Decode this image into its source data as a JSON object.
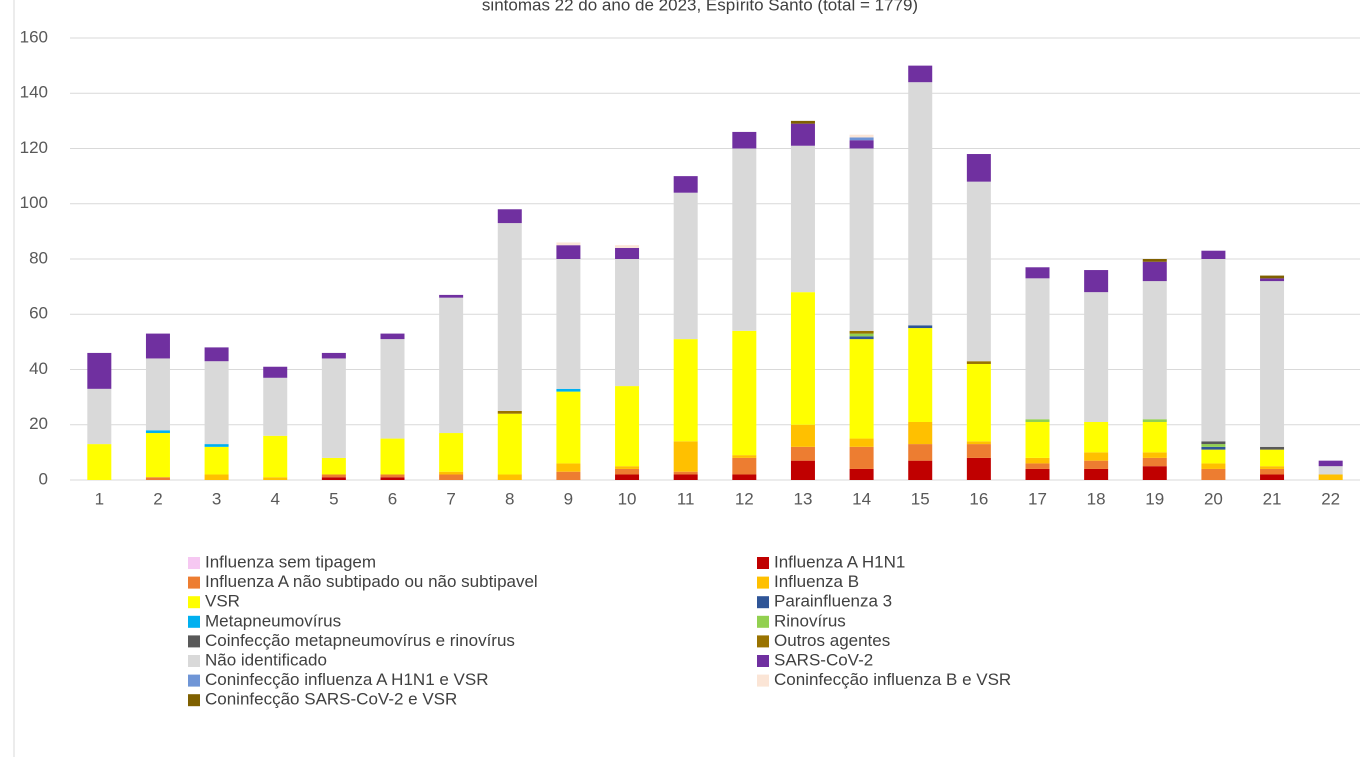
{
  "chart_data": {
    "type": "stacked_bar",
    "title": "sintomas 22 do ano de 2023, Espírito Santo (total = 1779)",
    "categories": [
      "1",
      "2",
      "3",
      "4",
      "5",
      "6",
      "7",
      "8",
      "9",
      "10",
      "11",
      "12",
      "13",
      "14",
      "15",
      "16",
      "17",
      "18",
      "19",
      "20",
      "21",
      "22"
    ],
    "ylim": [
      0,
      160
    ],
    "yticks": [
      0,
      20,
      40,
      60,
      80,
      100,
      120,
      140,
      160
    ],
    "grid": true,
    "series": [
      {
        "name": "Influenza sem tipagem",
        "color": "#f6c8f2",
        "values": [
          0,
          0,
          0,
          0,
          0,
          0,
          0,
          0,
          0,
          0,
          0,
          0,
          0,
          0,
          0,
          0,
          0,
          0,
          0,
          0,
          0,
          0
        ]
      },
      {
        "name": "Influenza A H1N1",
        "color": "#c00000",
        "values": [
          0,
          0,
          0,
          0,
          1,
          1,
          0,
          0,
          0,
          2,
          2,
          2,
          7,
          4,
          7,
          8,
          4,
          4,
          5,
          0,
          2,
          0
        ]
      },
      {
        "name": "Influenza A não subtipado ou não subtipavel",
        "color": "#ed7d31",
        "values": [
          0,
          1,
          0,
          0,
          1,
          1,
          2,
          0,
          3,
          2,
          1,
          6,
          5,
          8,
          6,
          5,
          2,
          3,
          3,
          4,
          2,
          0
        ]
      },
      {
        "name": "Influenza B",
        "color": "#ffc000",
        "values": [
          0,
          0,
          2,
          1,
          0,
          0,
          1,
          2,
          3,
          1,
          11,
          1,
          8,
          3,
          8,
          1,
          2,
          3,
          2,
          2,
          1,
          2
        ]
      },
      {
        "name": "VSR",
        "color": "#ffff00",
        "values": [
          13,
          16,
          10,
          15,
          6,
          13,
          14,
          22,
          26,
          29,
          37,
          45,
          48,
          36,
          34,
          28,
          13,
          11,
          11,
          5,
          6,
          0
        ]
      },
      {
        "name": "Parainfluenza 3",
        "color": "#2f5597",
        "values": [
          0,
          0,
          0,
          0,
          0,
          0,
          0,
          0,
          0,
          0,
          0,
          0,
          0,
          1,
          1,
          0,
          0,
          0,
          0,
          1,
          0,
          0
        ]
      },
      {
        "name": "Metapneumovírus",
        "color": "#00b0f0",
        "values": [
          0,
          1,
          1,
          0,
          0,
          0,
          0,
          0,
          1,
          0,
          0,
          0,
          0,
          0,
          0,
          0,
          0,
          0,
          0,
          0,
          0,
          0
        ]
      },
      {
        "name": "Rinovírus",
        "color": "#92d050",
        "values": [
          0,
          0,
          0,
          0,
          0,
          0,
          0,
          0,
          0,
          0,
          0,
          0,
          0,
          1,
          0,
          0,
          1,
          0,
          1,
          1,
          0,
          0
        ]
      },
      {
        "name": "Coinfecção metapneumovírus e rinovírus",
        "color": "#595959",
        "values": [
          0,
          0,
          0,
          0,
          0,
          0,
          0,
          0,
          0,
          0,
          0,
          0,
          0,
          0,
          0,
          0,
          0,
          0,
          0,
          1,
          1,
          0
        ]
      },
      {
        "name": "Outros agentes",
        "color": "#997300",
        "values": [
          0,
          0,
          0,
          0,
          0,
          0,
          0,
          1,
          0,
          0,
          0,
          0,
          0,
          1,
          0,
          1,
          0,
          0,
          0,
          0,
          0,
          0
        ]
      },
      {
        "name": "Não identificado",
        "color": "#d9d9d9",
        "values": [
          20,
          26,
          30,
          21,
          36,
          36,
          49,
          68,
          47,
          46,
          53,
          66,
          53,
          66,
          88,
          65,
          51,
          47,
          50,
          66,
          60,
          3
        ]
      },
      {
        "name": "SARS-CoV-2",
        "color": "#7030a0",
        "values": [
          13,
          9,
          5,
          4,
          2,
          2,
          1,
          5,
          5,
          4,
          6,
          6,
          8,
          3,
          6,
          10,
          4,
          8,
          7,
          3,
          1,
          2
        ]
      },
      {
        "name": "Coninfecção influenza A H1N1 e VSR",
        "color": "#6f95d6",
        "values": [
          0,
          0,
          0,
          0,
          0,
          0,
          0,
          0,
          0,
          0,
          0,
          0,
          0,
          1,
          0,
          0,
          0,
          0,
          0,
          0,
          0,
          0
        ]
      },
      {
        "name": "Coninfecção influenza B e VSR",
        "color": "#fbe5d6",
        "values": [
          0,
          0,
          0,
          0,
          0,
          0,
          0,
          0,
          1,
          1,
          0,
          0,
          0,
          1,
          0,
          0,
          0,
          0,
          0,
          0,
          0,
          0
        ]
      },
      {
        "name": "Coninfecção SARS-CoV-2  e VSR",
        "color": "#7f6000",
        "values": [
          0,
          0,
          0,
          0,
          0,
          0,
          0,
          0,
          0,
          0,
          0,
          0,
          1,
          0,
          0,
          0,
          0,
          0,
          1,
          0,
          1,
          0
        ]
      }
    ]
  }
}
